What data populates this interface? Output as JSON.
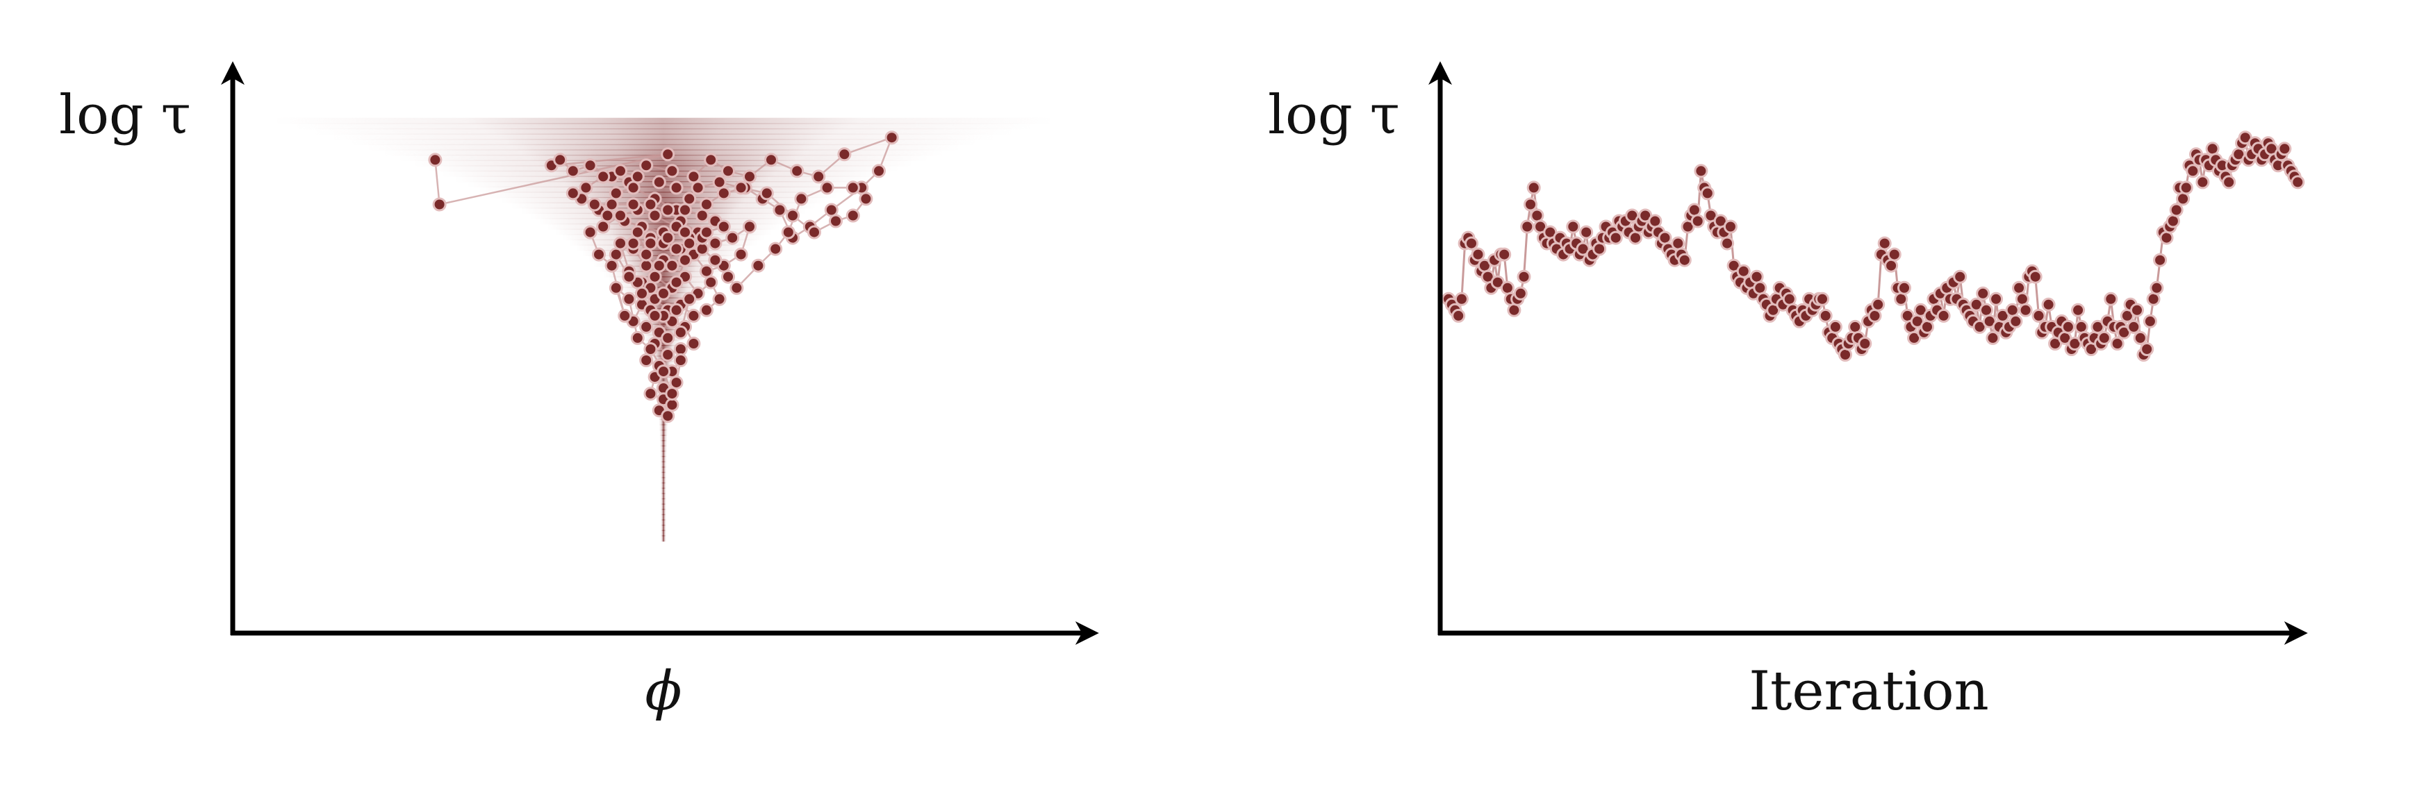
{
  "colors": {
    "accent": "#7a2a2a",
    "marker_edge": "#e2bcbc",
    "trace_line": "#c99a9a",
    "axis": "#000000",
    "funnel": "#7a2a2a"
  },
  "chart_data": [
    {
      "type": "scatter",
      "description_of_axes": "no tick labels; arrows on both axes",
      "xlabel": "ϕ",
      "ylabel": "log τ",
      "xlim": [
        -1,
        1
      ],
      "ylim": [
        0,
        1
      ],
      "grid": false,
      "background": "funnel-shaped density (narrow at low log τ, wide at high log τ)",
      "series": [
        {
          "kind": "sampler-trace",
          "points": [
            [
              -0.53,
              0.85
            ],
            [
              -0.52,
              0.77
            ],
            [
              0.01,
              0.86
            ],
            [
              -0.26,
              0.84
            ],
            [
              -0.24,
              0.85
            ],
            [
              -0.21,
              0.83
            ],
            [
              -0.17,
              0.84
            ],
            [
              -0.12,
              0.82
            ],
            [
              -0.08,
              0.81
            ],
            [
              -0.04,
              0.84
            ],
            [
              0.02,
              0.83
            ],
            [
              0.07,
              0.82
            ],
            [
              0.11,
              0.85
            ],
            [
              0.15,
              0.83
            ],
            [
              0.2,
              0.82
            ],
            [
              0.25,
              0.85
            ],
            [
              0.31,
              0.83
            ],
            [
              0.36,
              0.82
            ],
            [
              0.42,
              0.86
            ],
            [
              0.53,
              0.89
            ],
            [
              0.5,
              0.83
            ],
            [
              0.46,
              0.8
            ],
            [
              0.39,
              0.76
            ],
            [
              0.34,
              0.73
            ],
            [
              0.3,
              0.71
            ],
            [
              0.27,
              0.76
            ],
            [
              0.23,
              0.78
            ],
            [
              0.19,
              0.8
            ],
            [
              0.14,
              0.79
            ],
            [
              0.1,
              0.77
            ],
            [
              0.06,
              0.78
            ],
            [
              0.03,
              0.76
            ],
            [
              -0.02,
              0.78
            ],
            [
              -0.07,
              0.8
            ],
            [
              -0.11,
              0.79
            ],
            [
              -0.15,
              0.76
            ],
            [
              -0.19,
              0.78
            ],
            [
              -0.13,
              0.75
            ],
            [
              -0.09,
              0.74
            ],
            [
              -0.05,
              0.73
            ],
            [
              0.0,
              0.72
            ],
            [
              0.04,
              0.74
            ],
            [
              0.08,
              0.72
            ],
            [
              0.12,
              0.7
            ],
            [
              0.16,
              0.71
            ],
            [
              0.2,
              0.73
            ],
            [
              0.18,
              0.68
            ],
            [
              0.14,
              0.66
            ],
            [
              0.1,
              0.65
            ],
            [
              0.07,
              0.68
            ],
            [
              0.04,
              0.69
            ],
            [
              0.0,
              0.67
            ],
            [
              -0.04,
              0.66
            ],
            [
              -0.07,
              0.69
            ],
            [
              -0.1,
              0.7
            ],
            [
              -0.08,
              0.65
            ],
            [
              -0.05,
              0.63
            ],
            [
              -0.02,
              0.64
            ],
            [
              0.02,
              0.62
            ],
            [
              0.05,
              0.64
            ],
            [
              0.08,
              0.61
            ],
            [
              0.11,
              0.63
            ],
            [
              0.13,
              0.6
            ],
            [
              0.1,
              0.58
            ],
            [
              0.07,
              0.57
            ],
            [
              0.04,
              0.59
            ],
            [
              0.01,
              0.58
            ],
            [
              -0.02,
              0.6
            ],
            [
              -0.05,
              0.59
            ],
            [
              -0.07,
              0.56
            ],
            [
              -0.04,
              0.55
            ],
            [
              -0.01,
              0.54
            ],
            [
              0.02,
              0.56
            ],
            [
              0.05,
              0.55
            ],
            [
              0.07,
              0.52
            ],
            [
              0.04,
              0.51
            ],
            [
              0.01,
              0.5
            ],
            [
              -0.02,
              0.52
            ],
            [
              -0.04,
              0.49
            ],
            [
              -0.01,
              0.48
            ],
            [
              0.02,
              0.47
            ],
            [
              0.04,
              0.49
            ],
            [
              0.03,
              0.45
            ],
            [
              0.0,
              0.44
            ],
            [
              -0.02,
              0.46
            ],
            [
              -0.03,
              0.43
            ],
            [
              0.0,
              0.42
            ],
            [
              0.02,
              0.41
            ],
            [
              -0.01,
              0.4
            ],
            [
              0.01,
              0.39
            ],
            [
              0.02,
              0.43
            ],
            [
              0.0,
              0.47
            ],
            [
              -0.03,
              0.51
            ],
            [
              -0.06,
              0.53
            ],
            [
              -0.08,
              0.6
            ],
            [
              -0.11,
              0.62
            ],
            [
              -0.09,
              0.57
            ],
            [
              -0.12,
              0.66
            ],
            [
              -0.15,
              0.68
            ],
            [
              -0.17,
              0.72
            ],
            [
              -0.14,
              0.73
            ],
            [
              -0.1,
              0.75
            ],
            [
              -0.06,
              0.76
            ],
            [
              -0.02,
              0.75
            ],
            [
              0.03,
              0.73
            ],
            [
              0.06,
              0.71
            ],
            [
              0.09,
              0.69
            ],
            [
              0.12,
              0.67
            ],
            [
              0.15,
              0.64
            ],
            [
              0.17,
              0.62
            ],
            [
              0.22,
              0.66
            ],
            [
              0.26,
              0.69
            ],
            [
              0.29,
              0.72
            ],
            [
              0.32,
              0.78
            ],
            [
              0.38,
              0.8
            ],
            [
              0.44,
              0.8
            ],
            [
              0.47,
              0.78
            ],
            [
              0.44,
              0.75
            ],
            [
              0.4,
              0.74
            ],
            [
              0.35,
              0.72
            ],
            [
              0.3,
              0.75
            ],
            [
              0.24,
              0.79
            ],
            [
              0.18,
              0.8
            ],
            [
              0.13,
              0.81
            ],
            [
              0.08,
              0.8
            ],
            [
              0.03,
              0.8
            ],
            [
              -0.01,
              0.81
            ],
            [
              -0.06,
              0.82
            ],
            [
              -0.1,
              0.83
            ],
            [
              -0.14,
              0.82
            ],
            [
              -0.18,
              0.8
            ],
            [
              -0.21,
              0.79
            ],
            [
              -0.16,
              0.77
            ],
            [
              -0.12,
              0.77
            ],
            [
              -0.07,
              0.77
            ],
            [
              -0.03,
              0.77
            ],
            [
              0.01,
              0.76
            ],
            [
              0.05,
              0.76
            ],
            [
              0.09,
              0.75
            ],
            [
              0.12,
              0.74
            ],
            [
              0.09,
              0.71
            ],
            [
              0.06,
              0.7
            ],
            [
              0.03,
              0.69
            ],
            [
              0.0,
              0.7
            ],
            [
              -0.03,
              0.71
            ],
            [
              -0.06,
              0.72
            ],
            [
              -0.04,
              0.68
            ],
            [
              -0.01,
              0.66
            ],
            [
              0.02,
              0.66
            ],
            [
              0.05,
              0.67
            ],
            [
              0.03,
              0.63
            ],
            [
              0.0,
              0.61
            ],
            [
              -0.03,
              0.62
            ],
            [
              -0.06,
              0.63
            ],
            [
              -0.03,
              0.58
            ],
            [
              0.0,
              0.57
            ],
            [
              0.03,
              0.58
            ],
            [
              0.06,
              0.6
            ],
            [
              0.04,
              0.54
            ],
            [
              0.01,
              0.53
            ],
            [
              -0.02,
              0.57
            ],
            [
              -0.05,
              0.61
            ],
            [
              -0.08,
              0.64
            ],
            [
              -0.11,
              0.68
            ],
            [
              -0.07,
              0.7
            ],
            [
              -0.03,
              0.7
            ],
            [
              0.01,
              0.71
            ],
            [
              0.05,
              0.72
            ],
            [
              0.1,
              0.72
            ],
            [
              0.14,
              0.73
            ]
          ]
        }
      ]
    },
    {
      "type": "line",
      "description_of_axes": "no tick labels; arrows on both axes",
      "xlabel": "Iteration",
      "ylabel": "log τ",
      "xlim": [
        0,
        260
      ],
      "ylim": [
        0,
        1
      ],
      "grid": false,
      "series": [
        {
          "kind": "trace-plot",
          "x_start": 0,
          "x_step": 1,
          "y": [
            0.6,
            0.59,
            0.58,
            0.57,
            0.6,
            0.7,
            0.71,
            0.7,
            0.67,
            0.68,
            0.65,
            0.66,
            0.64,
            0.62,
            0.67,
            0.63,
            0.68,
            0.68,
            0.62,
            0.6,
            0.58,
            0.6,
            0.61,
            0.64,
            0.73,
            0.77,
            0.8,
            0.75,
            0.73,
            0.71,
            0.7,
            0.72,
            0.7,
            0.69,
            0.71,
            0.68,
            0.7,
            0.69,
            0.73,
            0.7,
            0.68,
            0.69,
            0.72,
            0.67,
            0.68,
            0.7,
            0.69,
            0.71,
            0.73,
            0.71,
            0.72,
            0.71,
            0.74,
            0.73,
            0.74,
            0.72,
            0.75,
            0.71,
            0.73,
            0.74,
            0.75,
            0.72,
            0.73,
            0.74,
            0.72,
            0.7,
            0.71,
            0.69,
            0.68,
            0.67,
            0.7,
            0.68,
            0.67,
            0.73,
            0.75,
            0.76,
            0.74,
            0.83,
            0.8,
            0.79,
            0.75,
            0.73,
            0.72,
            0.74,
            0.72,
            0.7,
            0.73,
            0.66,
            0.64,
            0.63,
            0.65,
            0.62,
            0.63,
            0.61,
            0.64,
            0.62,
            0.6,
            0.59,
            0.57,
            0.58,
            0.6,
            0.62,
            0.59,
            0.61,
            0.6,
            0.58,
            0.57,
            0.56,
            0.58,
            0.57,
            0.6,
            0.58,
            0.59,
            0.6,
            0.6,
            0.57,
            0.54,
            0.53,
            0.55,
            0.52,
            0.51,
            0.5,
            0.52,
            0.53,
            0.55,
            0.53,
            0.51,
            0.52,
            0.56,
            0.58,
            0.57,
            0.59,
            0.68,
            0.7,
            0.67,
            0.66,
            0.68,
            0.62,
            0.6,
            0.62,
            0.57,
            0.55,
            0.53,
            0.56,
            0.58,
            0.54,
            0.55,
            0.57,
            0.6,
            0.58,
            0.61,
            0.57,
            0.62,
            0.6,
            0.63,
            0.6,
            0.64,
            0.59,
            0.58,
            0.57,
            0.56,
            0.59,
            0.55,
            0.61,
            0.58,
            0.56,
            0.53,
            0.6,
            0.55,
            0.57,
            0.54,
            0.55,
            0.58,
            0.56,
            0.62,
            0.6,
            0.58,
            0.64,
            0.65,
            0.64,
            0.57,
            0.54,
            0.55,
            0.59,
            0.55,
            0.52,
            0.54,
            0.56,
            0.53,
            0.55,
            0.51,
            0.52,
            0.58,
            0.55,
            0.53,
            0.52,
            0.51,
            0.53,
            0.55,
            0.52,
            0.53,
            0.56,
            0.6,
            0.55,
            0.52,
            0.55,
            0.54,
            0.57,
            0.59,
            0.55,
            0.58,
            0.53,
            0.5,
            0.51,
            0.56,
            0.6,
            0.62,
            0.67,
            0.72,
            0.71,
            0.73,
            0.74,
            0.76,
            0.8,
            0.78,
            0.8,
            0.84,
            0.83,
            0.86,
            0.85,
            0.81,
            0.85,
            0.84,
            0.87,
            0.85,
            0.83,
            0.84,
            0.82,
            0.81,
            0.84,
            0.85,
            0.86,
            0.88,
            0.89,
            0.85,
            0.86,
            0.88,
            0.87,
            0.85,
            0.86,
            0.88,
            0.87,
            0.85,
            0.84,
            0.86,
            0.87,
            0.84,
            0.83,
            0.82,
            0.81
          ]
        }
      ]
    }
  ]
}
